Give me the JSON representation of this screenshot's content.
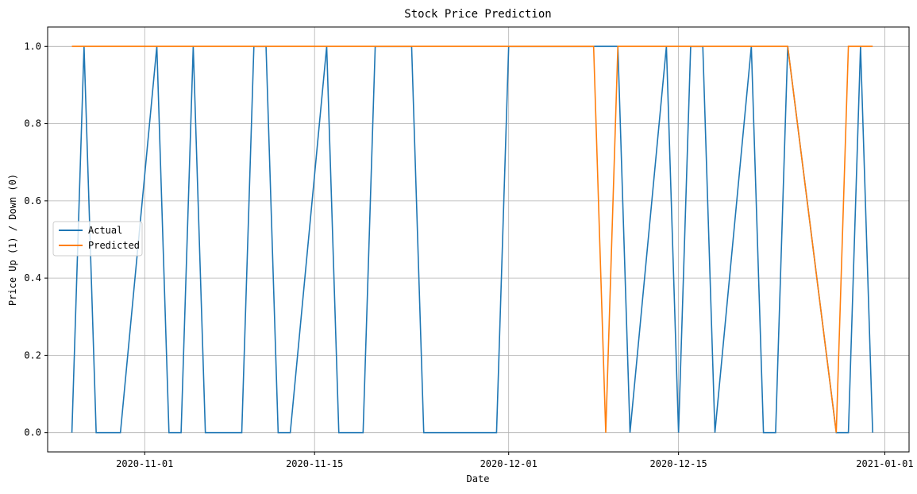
{
  "chart_data": {
    "type": "line",
    "title": "Stock Price Prediction",
    "xlabel": "Date",
    "ylabel": "Price Up (1) / Down (0)",
    "x_ticks": [
      "2020-11-01",
      "2020-11-15",
      "2020-12-01",
      "2020-12-15",
      "2021-01-01"
    ],
    "y_ticks": [
      "0.0",
      "0.2",
      "0.4",
      "0.6",
      "0.8",
      "1.0"
    ],
    "xlim": [
      "2020-10-24",
      "2021-01-03"
    ],
    "ylim": [
      -0.05,
      1.05
    ],
    "grid": true,
    "legend_position": "center-left",
    "x": [
      "2020-10-26",
      "2020-10-27",
      "2020-10-28",
      "2020-10-29",
      "2020-10-30",
      "2020-11-02",
      "2020-11-03",
      "2020-11-04",
      "2020-11-05",
      "2020-11-06",
      "2020-11-09",
      "2020-11-10",
      "2020-11-11",
      "2020-11-12",
      "2020-11-13",
      "2020-11-16",
      "2020-11-17",
      "2020-11-18",
      "2020-11-19",
      "2020-11-20",
      "2020-11-23",
      "2020-11-24",
      "2020-11-25",
      "2020-11-27",
      "2020-11-30",
      "2020-12-01",
      "2020-12-02",
      "2020-12-03",
      "2020-12-04",
      "2020-12-07",
      "2020-12-08",
      "2020-12-09",
      "2020-12-10",
      "2020-12-11",
      "2020-12-14",
      "2020-12-15",
      "2020-12-16",
      "2020-12-17",
      "2020-12-18",
      "2020-12-21",
      "2020-12-22",
      "2020-12-23",
      "2020-12-24",
      "2020-12-28",
      "2020-12-29",
      "2020-12-30",
      "2020-12-31"
    ],
    "series": [
      {
        "name": "Actual",
        "color": "#1f77b4",
        "values": [
          0,
          1,
          0,
          0,
          0,
          1,
          0,
          0,
          1,
          0,
          0,
          1,
          1,
          0,
          0,
          1,
          0,
          0,
          0,
          1,
          1,
          0,
          0,
          0,
          0,
          1,
          1,
          1,
          1,
          1,
          1,
          1,
          1,
          0,
          1,
          0,
          1,
          1,
          0,
          1,
          0,
          0,
          1,
          0,
          0,
          1,
          0
        ]
      },
      {
        "name": "Predicted",
        "color": "#ff7f0e",
        "values": [
          1,
          1,
          1,
          1,
          1,
          1,
          1,
          1,
          1,
          1,
          1,
          1,
          1,
          1,
          1,
          1,
          1,
          1,
          1,
          1,
          1,
          1,
          1,
          1,
          1,
          1,
          1,
          1,
          1,
          1,
          1,
          0,
          1,
          1,
          1,
          1,
          1,
          1,
          1,
          1,
          1,
          1,
          1,
          0,
          1,
          1,
          1
        ]
      }
    ]
  }
}
